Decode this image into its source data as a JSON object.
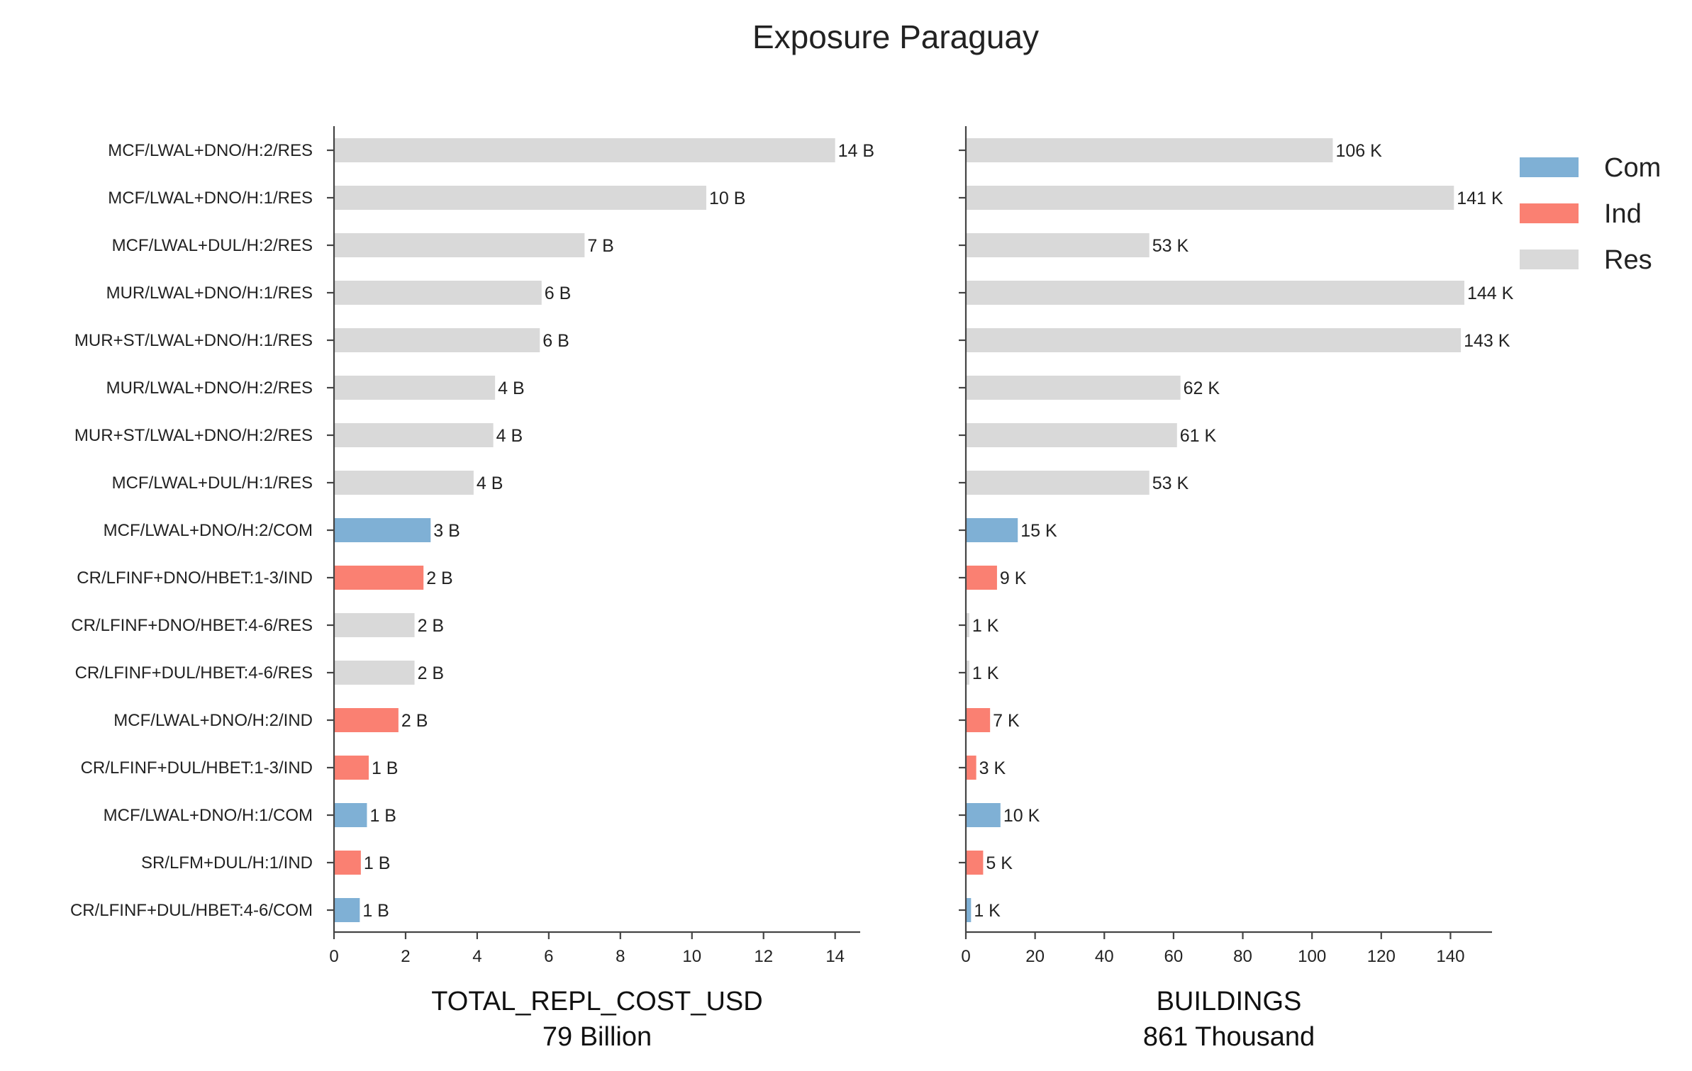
{
  "title": "Exposure Paraguay",
  "colors": {
    "Com": "#7FB0D5",
    "Ind": "#FA8072",
    "Res": "#D9D9D9"
  },
  "legend": [
    {
      "key": "Com",
      "label": "Com"
    },
    {
      "key": "Ind",
      "label": "Ind"
    },
    {
      "key": "Res",
      "label": "Res"
    }
  ],
  "chart_data": [
    {
      "type": "bar",
      "orientation": "horizontal",
      "xlabel": "TOTAL_REPL_COST_USD",
      "xlabel_sub": "79 Billion",
      "xlim": [
        0,
        14.7
      ],
      "xticks": [
        0,
        2,
        4,
        6,
        8,
        10,
        12,
        14
      ],
      "categories": [
        "MCF/LWAL+DNO/H:2/RES",
        "MCF/LWAL+DNO/H:1/RES",
        "MCF/LWAL+DUL/H:2/RES",
        "MUR/LWAL+DNO/H:1/RES",
        "MUR+ST/LWAL+DNO/H:1/RES",
        "MUR/LWAL+DNO/H:2/RES",
        "MUR+ST/LWAL+DNO/H:2/RES",
        "MCF/LWAL+DUL/H:1/RES",
        "MCF/LWAL+DNO/H:2/COM",
        "CR/LFINF+DNO/HBET:1-3/IND",
        "CR/LFINF+DNO/HBET:4-6/RES",
        "CR/LFINF+DUL/HBET:4-6/RES",
        "MCF/LWAL+DNO/H:2/IND",
        "CR/LFINF+DUL/HBET:1-3/IND",
        "MCF/LWAL+DNO/H:1/COM",
        "SR/LFM+DUL/H:1/IND",
        "CR/LFINF+DUL/HBET:4-6/COM"
      ],
      "occupancy": [
        "Res",
        "Res",
        "Res",
        "Res",
        "Res",
        "Res",
        "Res",
        "Res",
        "Com",
        "Ind",
        "Res",
        "Res",
        "Ind",
        "Ind",
        "Com",
        "Ind",
        "Com"
      ],
      "values": [
        14.0,
        10.4,
        7.0,
        5.8,
        5.75,
        4.5,
        4.45,
        3.9,
        2.7,
        2.5,
        2.25,
        2.25,
        1.8,
        0.97,
        0.92,
        0.75,
        0.72
      ],
      "value_labels": [
        "14 B",
        "10 B",
        "7 B",
        "6 B",
        "6 B",
        "4 B",
        "4 B",
        "4 B",
        "3 B",
        "2 B",
        "2 B",
        "2 B",
        "2 B",
        "1 B",
        "1 B",
        "1 B",
        "1 B"
      ]
    },
    {
      "type": "bar",
      "orientation": "horizontal",
      "xlabel": "BUILDINGS",
      "xlabel_sub": "861 Thousand",
      "xlim": [
        0,
        152
      ],
      "xticks": [
        0,
        20,
        40,
        60,
        80,
        100,
        120,
        140
      ],
      "categories": [
        "MCF/LWAL+DNO/H:2/RES",
        "MCF/LWAL+DNO/H:1/RES",
        "MCF/LWAL+DUL/H:2/RES",
        "MUR/LWAL+DNO/H:1/RES",
        "MUR+ST/LWAL+DNO/H:1/RES",
        "MUR/LWAL+DNO/H:2/RES",
        "MUR+ST/LWAL+DNO/H:2/RES",
        "MCF/LWAL+DUL/H:1/RES",
        "MCF/LWAL+DNO/H:2/COM",
        "CR/LFINF+DNO/HBET:1-3/IND",
        "CR/LFINF+DNO/HBET:4-6/RES",
        "CR/LFINF+DUL/HBET:4-6/RES",
        "MCF/LWAL+DNO/H:2/IND",
        "CR/LFINF+DUL/HBET:1-3/IND",
        "MCF/LWAL+DNO/H:1/COM",
        "SR/LFM+DUL/H:1/IND",
        "CR/LFINF+DUL/HBET:4-6/COM"
      ],
      "occupancy": [
        "Res",
        "Res",
        "Res",
        "Res",
        "Res",
        "Res",
        "Res",
        "Res",
        "Com",
        "Ind",
        "Res",
        "Res",
        "Ind",
        "Ind",
        "Com",
        "Ind",
        "Com"
      ],
      "values": [
        106,
        141,
        53,
        144,
        143,
        62,
        61,
        53,
        15,
        9,
        1,
        1,
        7,
        3,
        10,
        5,
        1.5
      ],
      "value_labels": [
        "106 K",
        "141 K",
        "53 K",
        "144 K",
        "143 K",
        "62 K",
        "61 K",
        "53 K",
        "15 K",
        "9 K",
        "1 K",
        "1 K",
        "7 K",
        "3 K",
        "10 K",
        "5 K",
        "1 K"
      ]
    }
  ]
}
